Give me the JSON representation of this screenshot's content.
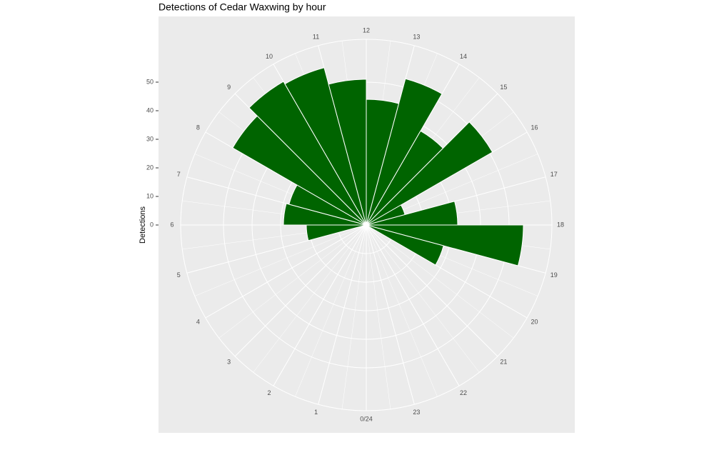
{
  "chart_data": {
    "type": "polar-bar",
    "title": "Detections of Cedar Waxwing by hour",
    "y_label": "Detections",
    "x": [
      0,
      1,
      2,
      3,
      4,
      5,
      6,
      7,
      8,
      9,
      10,
      11,
      12,
      13,
      14,
      15,
      16,
      17,
      18,
      19,
      20,
      21,
      22,
      23
    ],
    "values": [
      0,
      0,
      0,
      0,
      0,
      21,
      29,
      28,
      54,
      58,
      57,
      51,
      44,
      53,
      38,
      51,
      14,
      32,
      55,
      28,
      0,
      0,
      0,
      0
    ],
    "color": "#006400",
    "xlim": [
      0,
      24
    ],
    "xticks": [
      {
        "value": 0,
        "label": "0/24"
      },
      1,
      2,
      3,
      4,
      5,
      6,
      7,
      8,
      9,
      10,
      11,
      12,
      13,
      14,
      15,
      16,
      17,
      18,
      19,
      20,
      21,
      22,
      23
    ],
    "ylim": [
      0,
      65
    ],
    "yticks": [
      0,
      10,
      20,
      30,
      40,
      50
    ],
    "grid": true
  }
}
